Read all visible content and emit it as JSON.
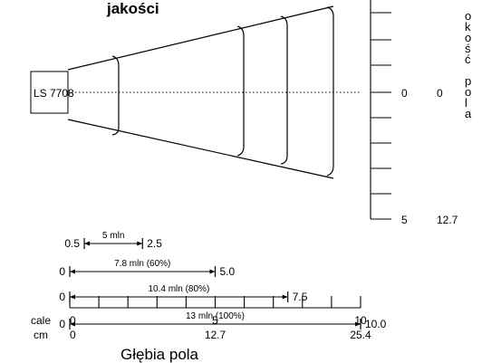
{
  "diagram": {
    "top_label": "jakości",
    "scanner_label": "LS 7708",
    "title": "Głębia pola",
    "side_text_a": [
      "o",
      "k",
      "o",
      "ś",
      "ć"
    ],
    "side_text_b": [
      "p",
      "o",
      "l",
      "a"
    ],
    "side_zero_inch": "0",
    "side_zero_cm": "0",
    "side_bottom_inch": "5",
    "side_bottom_cm": "12.7"
  },
  "chart_data": {
    "type": "range",
    "bars": [
      {
        "label": "5 mln",
        "start": 0.5,
        "end": 2.5,
        "start_label": "0.5",
        "end_label": "2.5"
      },
      {
        "label": "7.8 mln (60%)",
        "start": 0,
        "end": 5.0,
        "start_label": "0",
        "end_label": "5.0"
      },
      {
        "label": "10.4 mln (80%)",
        "start": 0,
        "end": 7.5,
        "start_label": "0",
        "end_label": "7.5"
      },
      {
        "label": "13 mln (100%)",
        "start": 0,
        "end": 10.0,
        "start_label": "0",
        "end_label": "10.0"
      }
    ],
    "axis": {
      "unit_inch": "cale",
      "unit_cm": "cm",
      "ticks": [
        {
          "inch": "0",
          "cm": "0",
          "value": 0
        },
        {
          "inch": "5",
          "cm": "12.7",
          "value": 5
        },
        {
          "inch": "10",
          "cm": "25.4",
          "value": 10
        }
      ],
      "min": 0,
      "max": 10
    }
  }
}
